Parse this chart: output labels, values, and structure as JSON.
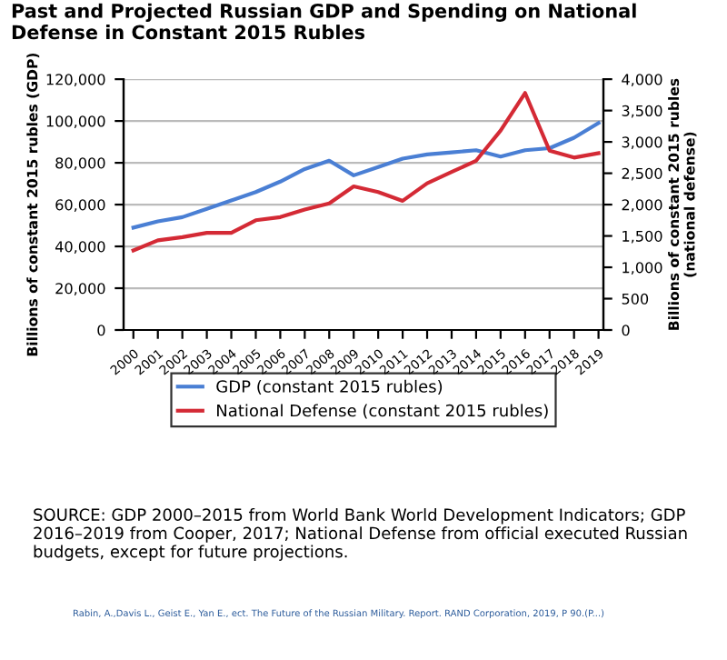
{
  "chart_data": {
    "type": "line",
    "title": "Past and Projected Russian GDP and Spending on National Defense in Constant 2015 Rubles",
    "ylabel": "Billions of constant 2015 rubles (GDP)",
    "y2label": "Billions of constant 2015 rubles\n(national defense)",
    "categories": [
      "2000",
      "2001",
      "2002",
      "2003",
      "2004",
      "2005",
      "2006",
      "2007",
      "2008",
      "2009",
      "2010",
      "2011",
      "2012",
      "2013",
      "2014",
      "2015",
      "2016",
      "2017",
      "2018",
      "2019"
    ],
    "series": [
      {
        "name": "GDP (constant 2015 rubles)",
        "color": "#4a7fd4",
        "values": [
          49000,
          52000,
          54000,
          58000,
          62000,
          66000,
          71000,
          77000,
          81000,
          74000,
          78000,
          82000,
          84000,
          85000,
          86000,
          83000,
          86000,
          87000,
          92000,
          99000
        ]
      },
      {
        "name": "National Defense (constant 2015 rubles)",
        "color": "#d42a35",
        "axis": "y2",
        "values": [
          1270,
          1430,
          1480,
          1550,
          1550,
          1750,
          1800,
          1920,
          2020,
          2290,
          2200,
          2060,
          2340,
          2520,
          2700,
          3180,
          3780,
          2860,
          2750,
          2820
        ]
      }
    ],
    "ylim": [
      0,
      120000
    ],
    "yticks": [
      {
        "value": 0,
        "label": "0"
      },
      {
        "value": 20000,
        "label": "20,000"
      },
      {
        "value": 40000,
        "label": "40,000"
      },
      {
        "value": 60000,
        "label": "60,000"
      },
      {
        "value": 80000,
        "label": "80,000"
      },
      {
        "value": 100000,
        "label": "100,000"
      },
      {
        "value": 120000,
        "label": "120,000"
      }
    ],
    "y2lim": [
      0,
      4000
    ],
    "y2ticks": [
      0,
      500,
      {
        "value": 1000,
        "label": "1,000"
      },
      {
        "value": 1500,
        "label": "1,500"
      },
      {
        "value": 2000,
        "label": "2,000"
      },
      {
        "value": 2500,
        "label": "2,500"
      },
      {
        "value": 3000,
        "label": "3,000"
      },
      {
        "value": 3500,
        "label": "3,500"
      },
      {
        "value": 4000,
        "label": "4,000"
      }
    ],
    "grid": "y",
    "legend": "bottom",
    "marker": "none",
    "line_style": "solid",
    "annotations": [
      "SOURCE: GDP 2000–2015 from World Bank World Development Indicators; GDP 2016–2019 from Cooper, 2017; National Defense from official executed Russian budgets, except for future projections.",
      "Rabin, A.,Davis L., Geist E., Yan E., ect. The Future of the Russian Military. Report. RAND Corporation, 2019, P 90.(P...)"
    ]
  }
}
